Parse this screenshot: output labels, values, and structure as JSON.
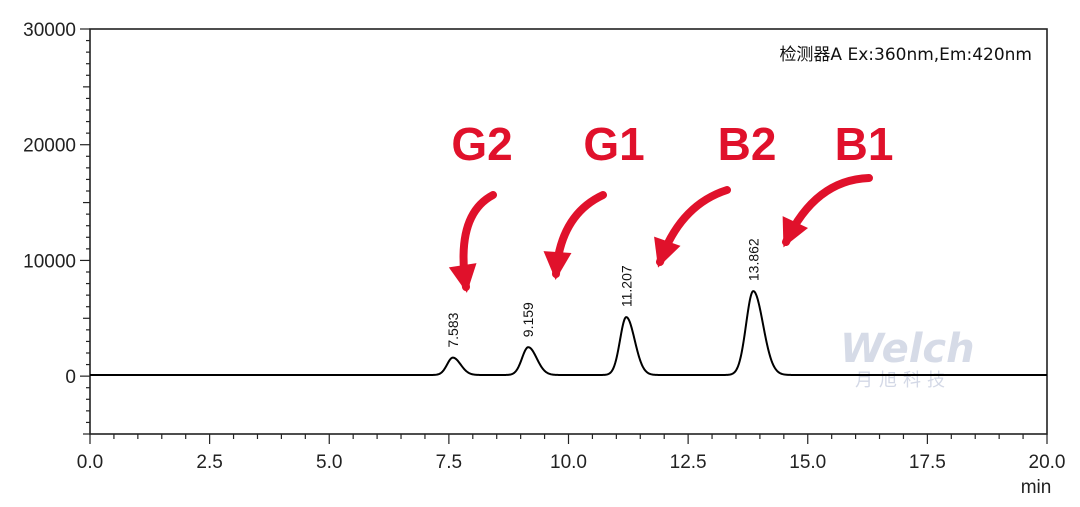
{
  "chart_data": {
    "type": "line",
    "xlabel": "min",
    "xlim": [
      0,
      20
    ],
    "ylim": [
      -5000,
      30000
    ],
    "xticks": [
      0,
      2.5,
      5,
      7.5,
      10,
      12.5,
      15,
      17.5,
      20
    ],
    "xtick_labels": [
      "0.0",
      "2.5",
      "5.0",
      "7.5",
      "10.0",
      "12.5",
      "15.0",
      "17.5",
      "20.0"
    ],
    "yticks": [
      0,
      10000,
      20000,
      30000
    ],
    "ytick_labels": [
      "0",
      "10000",
      "20000",
      "30000"
    ],
    "detector": "检测器A  Ex:360nm,Em:420nm",
    "peaks": [
      {
        "rt": 7.583,
        "label": "7.583",
        "height": 1500,
        "width": 0.12,
        "name": "G2"
      },
      {
        "rt": 9.159,
        "label": "9.159",
        "height": 2400,
        "width": 0.13,
        "name": "G1"
      },
      {
        "rt": 11.207,
        "label": "11.207",
        "height": 5000,
        "width": 0.13,
        "name": "B2"
      },
      {
        "rt": 13.862,
        "label": "13.862",
        "height": 7250,
        "width": 0.15,
        "name": "B1"
      }
    ],
    "baseline": 100,
    "annotations": [
      "G2",
      "G1",
      "B2",
      "B1"
    ],
    "grid": false
  },
  "watermark": {
    "logo": "Welch",
    "sub": "月旭科技"
  },
  "colors": {
    "line": "#000000",
    "annotation": "#e0112b",
    "watermark": "#c9cfe0"
  }
}
